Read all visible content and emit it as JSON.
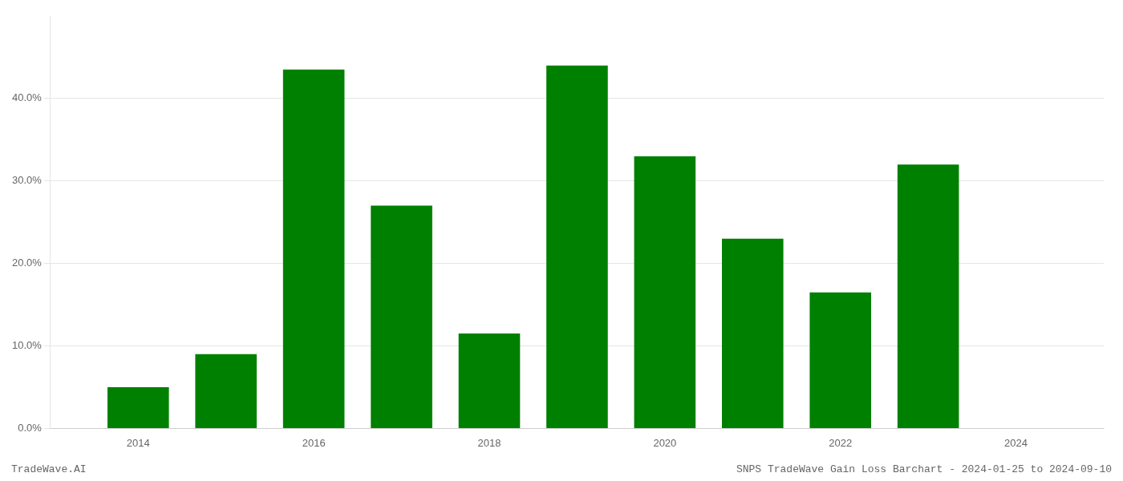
{
  "chart_data": {
    "type": "bar",
    "x": [
      2014,
      2015,
      2016,
      2017,
      2018,
      2019,
      2020,
      2021,
      2022,
      2023
    ],
    "values": [
      0.05,
      0.09,
      0.435,
      0.27,
      0.115,
      0.44,
      0.33,
      0.23,
      0.165,
      0.32
    ],
    "color": "#008000",
    "xlim": [
      2013.0,
      2025.0
    ],
    "xticks": [
      2014,
      2016,
      2018,
      2020,
      2022,
      2024
    ],
    "ylim": [
      0,
      0.5
    ],
    "yticks": [
      {
        "value": 0.0,
        "label": "0.0%"
      },
      {
        "value": 0.1,
        "label": "10.0%"
      },
      {
        "value": 0.2,
        "label": "20.0%"
      },
      {
        "value": 0.3,
        "label": "30.0%"
      },
      {
        "value": 0.4,
        "label": "40.0%"
      }
    ],
    "grid": true,
    "annotations": [
      "TradeWave.AI",
      "SNPS TradeWave Gain Loss Barchart - 2024-01-25 to 2024-09-10"
    ]
  }
}
